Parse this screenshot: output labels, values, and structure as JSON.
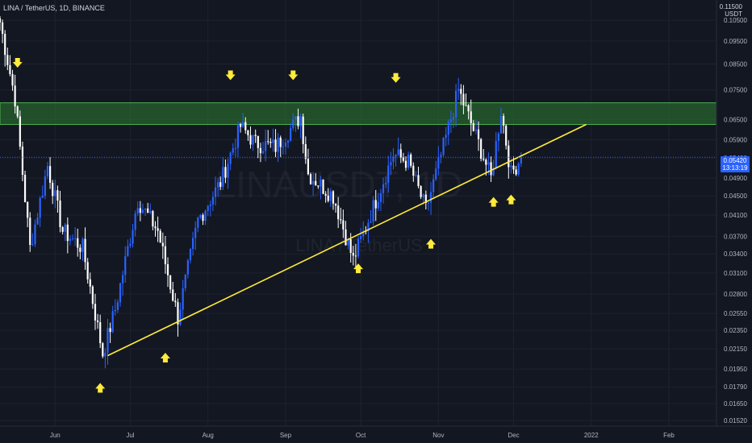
{
  "header": {
    "symbol_line": "LINA / TetherUS, 1D, BINANCE"
  },
  "axis": {
    "unit_top": "0.11500",
    "unit_label": "USDT"
  },
  "price_tag": {
    "price": "0.05420",
    "countdown": "13:13:19"
  },
  "watermark": {
    "line1": "LINAUSDT, 1D",
    "line2": "LINA / TetherUS"
  },
  "colors": {
    "background": "#131722",
    "candle_up": "#2962ff",
    "candle_down": "#ffffff",
    "zone": "#2e7d32",
    "trendline": "#ffeb3b",
    "arrow": "#ffeb3b",
    "last_price_line": "#2962ff"
  },
  "chart_data": {
    "type": "candlestick",
    "scale": "log",
    "y_ticks": [
      "0.10500",
      "0.09500",
      "0.08500",
      "0.07500",
      "0.06500",
      "0.05900",
      "0.05400",
      "0.04900",
      "0.04500",
      "0.04100",
      "0.03700",
      "0.03400",
      "0.03100",
      "0.02800",
      "0.02550",
      "0.02350",
      "0.02150",
      "0.01950",
      "0.01790",
      "0.01650",
      "0.01520"
    ],
    "x_ticks": [
      "Jun",
      "Jul",
      "Aug",
      "Sep",
      "Oct",
      "Nov",
      "Dec",
      "2022",
      "Feb"
    ],
    "x_tick_dates": [
      "2021-06-01",
      "2021-07-01",
      "2021-08-01",
      "2021-09-01",
      "2021-10-01",
      "2021-11-01",
      "2021-12-01",
      "2022-01-01",
      "2022-02-01"
    ],
    "date_range": [
      "2021-05-10",
      "2022-02-20"
    ],
    "ylim": [
      0.0148,
      0.1158
    ],
    "last_price": 0.0542,
    "resistance_zone": [
      0.0635,
      0.0705
    ],
    "trendline": {
      "start": [
        "2021-06-22",
        0.0208
      ],
      "end": [
        "2021-12-30",
        0.0635
      ]
    },
    "key_points": [
      {
        "date": "2021-05-10",
        "price": 0.104
      },
      {
        "date": "2021-05-16",
        "price": 0.072
      },
      {
        "date": "2021-05-22",
        "price": 0.035
      },
      {
        "date": "2021-05-29",
        "price": 0.052
      },
      {
        "date": "2021-06-04",
        "price": 0.038
      },
      {
        "date": "2021-06-12",
        "price": 0.035
      },
      {
        "date": "2021-06-20",
        "price": 0.021
      },
      {
        "date": "2021-06-25",
        "price": 0.026
      },
      {
        "date": "2021-07-04",
        "price": 0.044
      },
      {
        "date": "2021-07-12",
        "price": 0.038
      },
      {
        "date": "2021-07-20",
        "price": 0.025
      },
      {
        "date": "2021-07-28",
        "price": 0.04
      },
      {
        "date": "2021-08-06",
        "price": 0.048
      },
      {
        "date": "2021-08-14",
        "price": 0.063
      },
      {
        "date": "2021-08-20",
        "price": 0.058
      },
      {
        "date": "2021-08-28",
        "price": 0.057
      },
      {
        "date": "2021-09-07",
        "price": 0.066
      },
      {
        "date": "2021-09-10",
        "price": 0.05
      },
      {
        "date": "2021-09-20",
        "price": 0.045
      },
      {
        "date": "2021-09-28",
        "price": 0.033
      },
      {
        "date": "2021-10-07",
        "price": 0.044
      },
      {
        "date": "2021-10-14",
        "price": 0.055
      },
      {
        "date": "2021-10-20",
        "price": 0.053
      },
      {
        "date": "2021-10-27",
        "price": 0.042
      },
      {
        "date": "2021-11-03",
        "price": 0.057
      },
      {
        "date": "2021-11-09",
        "price": 0.075
      },
      {
        "date": "2021-11-17",
        "price": 0.058
      },
      {
        "date": "2021-11-22",
        "price": 0.049
      },
      {
        "date": "2021-11-26",
        "price": 0.068
      },
      {
        "date": "2021-11-30",
        "price": 0.05
      },
      {
        "date": "2021-12-04",
        "price": 0.0542
      }
    ],
    "arrows_down": [
      {
        "date": "2021-05-17",
        "price": 0.0855
      },
      {
        "date": "2021-08-10",
        "price": 0.0805
      },
      {
        "date": "2021-09-04",
        "price": 0.0805
      },
      {
        "date": "2021-10-15",
        "price": 0.0795
      }
    ],
    "arrows_up": [
      {
        "date": "2021-06-19",
        "price": 0.0178
      },
      {
        "date": "2021-07-15",
        "price": 0.0206
      },
      {
        "date": "2021-09-30",
        "price": 0.0317
      },
      {
        "date": "2021-10-29",
        "price": 0.0357
      },
      {
        "date": "2021-11-23",
        "price": 0.0437
      },
      {
        "date": "2021-11-30",
        "price": 0.0442
      }
    ]
  }
}
